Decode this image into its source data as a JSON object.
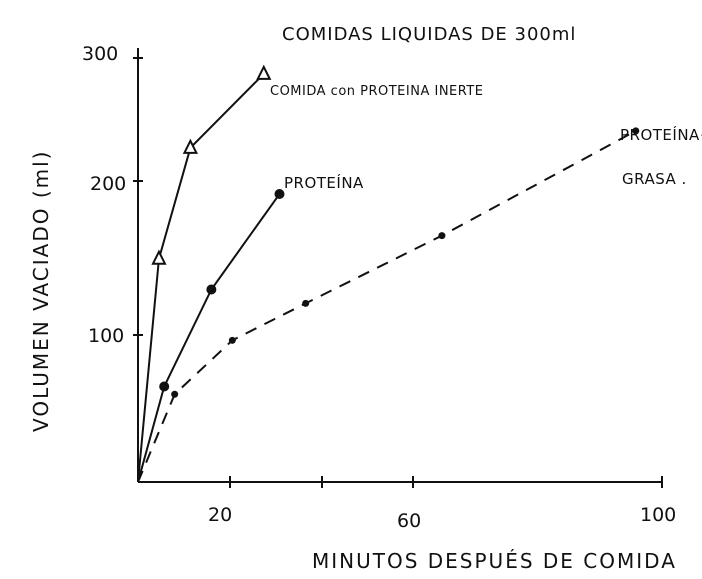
{
  "chart_data": {
    "type": "line",
    "title": "COMIDAS LIQUIDAS DE 300ml",
    "xlabel": "MINUTOS DESPUÉS DE COMIDA",
    "ylabel": "VOLUMEN VACIADO (ml)",
    "xlim": [
      0,
      100
    ],
    "ylim": [
      0,
      300
    ],
    "x_ticks": [
      "20",
      "60",
      "100"
    ],
    "y_ticks": [
      "100",
      "200",
      "300"
    ],
    "grid": false,
    "series": [
      {
        "name": "COMIDA con PROTEINA INERTE",
        "marker": "triangle-open",
        "line_style": "solid",
        "points": [
          [
            0,
            0
          ],
          [
            4,
            145
          ],
          [
            10,
            217
          ],
          [
            24,
            265
          ]
        ]
      },
      {
        "name": "PROTEÍNA",
        "marker": "circle-filled",
        "line_style": "solid",
        "points": [
          [
            0,
            0
          ],
          [
            5,
            62
          ],
          [
            14,
            125
          ],
          [
            27,
            187
          ]
        ]
      },
      {
        "name": "PROTEÍNA + GRASA",
        "marker": "circle-filled",
        "line_style": "dashed",
        "points": [
          [
            0,
            0
          ],
          [
            7,
            57
          ],
          [
            18,
            92
          ],
          [
            32,
            116
          ],
          [
            58,
            160
          ],
          [
            95,
            228
          ]
        ]
      }
    ]
  }
}
